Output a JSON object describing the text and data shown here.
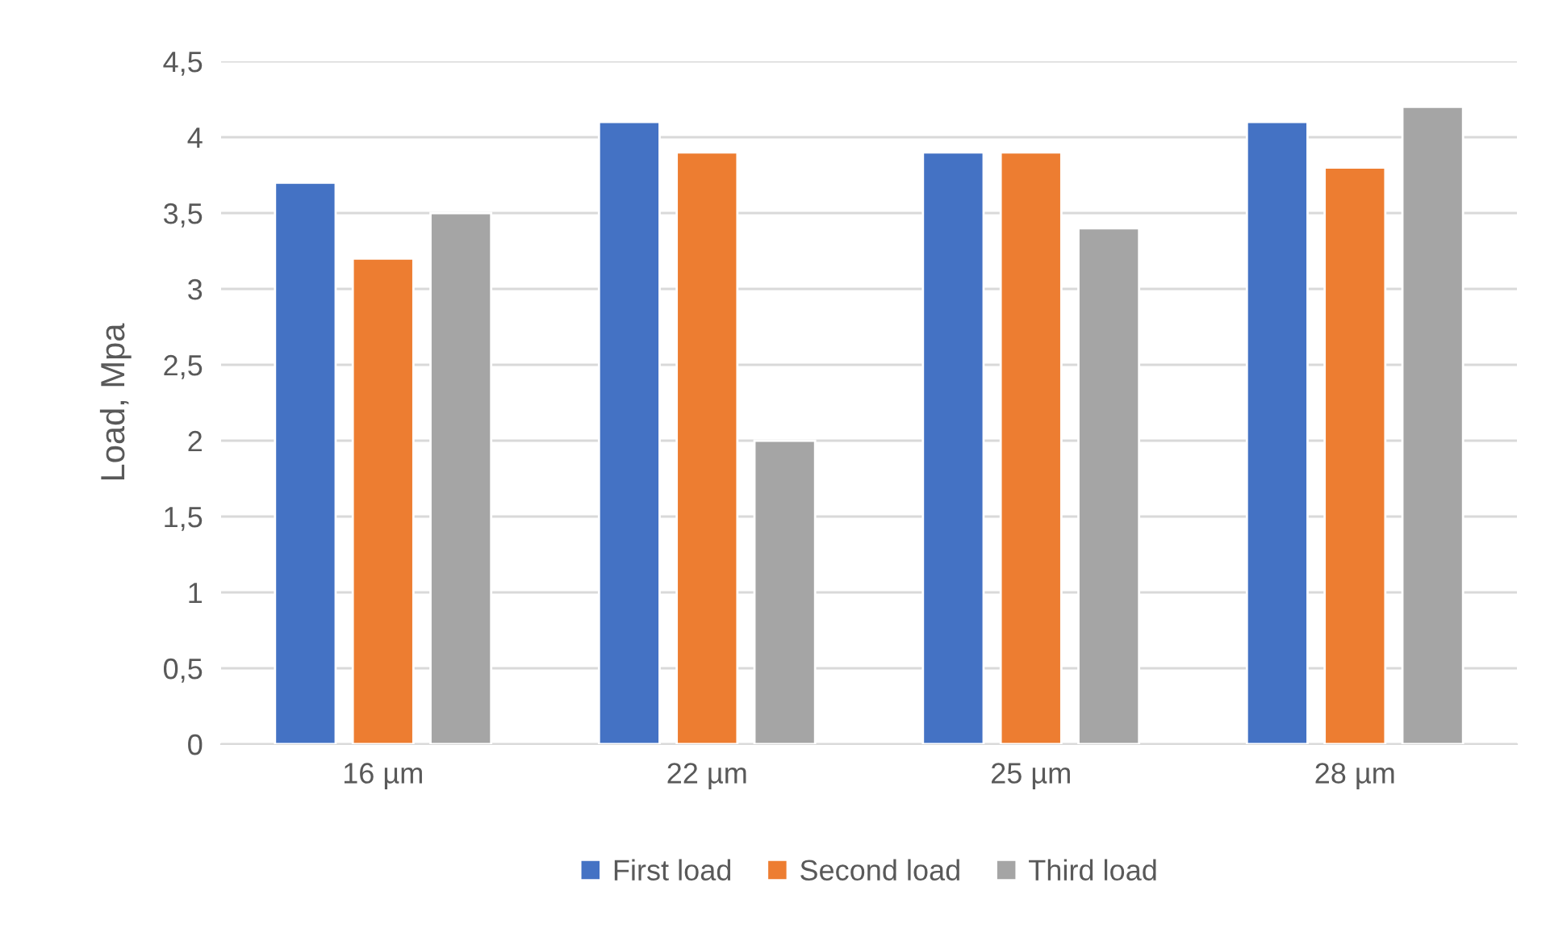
{
  "chart_data": {
    "type": "bar",
    "ylabel": "Load, Mpa",
    "categories": [
      "16 µm",
      "22 µm",
      "25 µm",
      "28 µm"
    ],
    "series": [
      {
        "name": "First load",
        "color": "#4472c4",
        "values": [
          3.7,
          4.1,
          3.9,
          4.1
        ]
      },
      {
        "name": "Second load",
        "color": "#ed7d31",
        "values": [
          3.2,
          3.9,
          3.9,
          3.8
        ]
      },
      {
        "name": "Third load",
        "color": "#a5a5a5",
        "values": [
          3.5,
          2.0,
          3.4,
          4.2
        ]
      }
    ],
    "ylim": [
      0,
      4.5
    ],
    "yticks": [
      0,
      {
        "value": 0.5,
        "label": "0,5"
      },
      1,
      {
        "value": 1.5,
        "label": "1,5"
      },
      2,
      {
        "value": 2.5,
        "label": "2,5"
      },
      3,
      {
        "value": 3.5,
        "label": "3,5"
      },
      4,
      {
        "value": 4.5,
        "label": "4,5"
      }
    ],
    "grid": "y",
    "legend": "bottom"
  }
}
